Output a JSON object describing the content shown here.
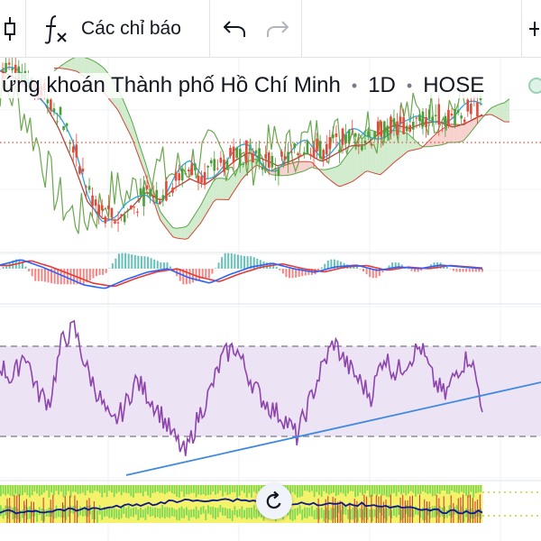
{
  "toolbar": {
    "candle_icon": "candlestick-icon",
    "indicators_label": "Các chỉ báo",
    "indicators_icon": "fx-icon",
    "undo_icon": "undo-icon",
    "redo_icon": "redo-icon",
    "more_icon": "more-icon"
  },
  "legend": {
    "symbol_name": "ứng khoán Thành phố Hồ Chí Minh",
    "interval": "1D",
    "exchange": "HOSE"
  },
  "reset_icon": "reset-chart-icon",
  "colors": {
    "price_red": "#e04b3a",
    "price_green": "#4c9f38",
    "ichimoku_blue": "#2ba6de",
    "cloud_green": "#c9e8c4",
    "cloud_red": "#f7c9c5",
    "macd_blue": "#2962ff",
    "macd_red": "#e53935",
    "rsi_purple": "#8e44ad",
    "rsi_band": "#ece4f4",
    "trendline": "#3f8ae0",
    "bottom_yellow": "#f4f26a",
    "bottom_green": "#7ed957",
    "bottom_navy": "#0d1a8c"
  },
  "chart_data": {
    "type": "line",
    "panes": [
      {
        "name": "price",
        "series": [
          {
            "values": [
              88,
              86,
              84,
              80,
              72,
              60,
              45,
              38,
              36,
              40,
              46,
              44,
              50,
              54,
              52,
              55,
              58,
              60,
              57,
              55,
              58,
              62,
              60,
              63,
              65,
              64,
              67,
              69,
              68,
              71,
              73,
              72,
              74,
              76
            ]
          }
        ]
      },
      {
        "name": "macd",
        "series": [
          {
            "values": [
              0.2,
              0.5,
              0.1,
              -0.4,
              -0.9,
              -1.1,
              -0.6,
              -0.2,
              0.0,
              -0.5,
              -0.8,
              -0.3,
              0.1,
              0.3,
              0.0,
              -0.2,
              0.1,
              0.2,
              -0.1,
              0.1,
              0.0,
              0.2,
              0.1,
              0.0
            ]
          }
        ]
      },
      {
        "name": "rsi",
        "series": [
          {
            "values": [
              62,
              55,
              68,
              50,
              45,
              72,
              78,
              60,
              48,
              35,
              42,
              55,
              48,
              40,
              30,
              22,
              38,
              50,
              65,
              70,
              58,
              48,
              42,
              38,
              30,
              45,
              60,
              72,
              62,
              55,
              48,
              66,
              58,
              64,
              70,
              55,
              48,
              60,
              66,
              44
            ]
          }
        ]
      }
    ]
  }
}
